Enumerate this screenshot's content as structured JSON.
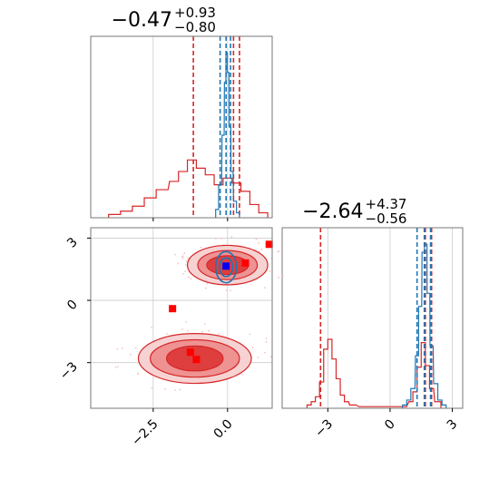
{
  "colors": {
    "red": "#d62728",
    "blue": "#1f77b4",
    "red_marker": "#ff0000",
    "blue_marker": "#0000ff",
    "grid": "#cccccc",
    "spine": "#777777"
  },
  "chart_data": [
    {
      "type": "histogram",
      "panel": "param-1-marginal",
      "title": "−0.47",
      "title_sup": "+0.93",
      "title_sub": "−0.80",
      "xlim": [
        -4.6,
        1.5
      ],
      "xticks": [
        -2.5,
        0.0
      ],
      "grid": true,
      "series": [
        {
          "color": "#d62728",
          "bins": [
            {
              "x": -3.8,
              "h": 0.02
            },
            {
              "x": -3.4,
              "h": 0.04
            },
            {
              "x": -3.0,
              "h": 0.07
            },
            {
              "x": -2.6,
              "h": 0.12
            },
            {
              "x": -2.2,
              "h": 0.17
            },
            {
              "x": -1.8,
              "h": 0.22
            },
            {
              "x": -1.5,
              "h": 0.28
            },
            {
              "x": -1.2,
              "h": 0.35
            },
            {
              "x": -0.9,
              "h": 0.3
            },
            {
              "x": -0.6,
              "h": 0.26
            },
            {
              "x": -0.3,
              "h": 0.2
            },
            {
              "x": 0.0,
              "h": 0.24
            },
            {
              "x": 0.3,
              "h": 0.21
            },
            {
              "x": 0.6,
              "h": 0.16
            },
            {
              "x": 0.9,
              "h": 0.08
            },
            {
              "x": 1.2,
              "h": 0.03
            }
          ],
          "quantile_lines": [
            -1.15,
            0.2,
            0.4
          ]
        },
        {
          "color": "#1f77b4",
          "bins": [
            {
              "x": -0.35,
              "h": 0.05
            },
            {
              "x": -0.25,
              "h": 0.2
            },
            {
              "x": -0.15,
              "h": 0.5
            },
            {
              "x": -0.08,
              "h": 0.82
            },
            {
              "x": -0.03,
              "h": 1.0
            },
            {
              "x": 0.02,
              "h": 0.88
            },
            {
              "x": 0.08,
              "h": 0.55
            },
            {
              "x": 0.15,
              "h": 0.28
            },
            {
              "x": 0.25,
              "h": 0.1
            },
            {
              "x": 0.35,
              "h": 0.03
            }
          ],
          "quantile_lines": [
            -0.25,
            -0.05,
            0.1
          ]
        }
      ]
    },
    {
      "type": "contour",
      "panel": "joint-2d",
      "xlim": [
        -4.6,
        1.5
      ],
      "ylim": [
        -5.2,
        3.5
      ],
      "xticks": [
        -2.5,
        0.0
      ],
      "yticks": [
        3,
        0,
        -3
      ],
      "grid": true,
      "red_modes": [
        {
          "cx": 0.0,
          "cy": 1.7,
          "rx": [
            1.35,
            1.0,
            0.7
          ],
          "ry": [
            0.95,
            0.7,
            0.45
          ]
        },
        {
          "cx": -1.1,
          "cy": -2.8,
          "rx": [
            1.9,
            1.5,
            0.95
          ],
          "ry": [
            1.2,
            0.9,
            0.6
          ]
        }
      ],
      "blue_mode": {
        "cx": -0.05,
        "cy": 1.6,
        "rx": [
          0.35,
          0.22
        ],
        "ry": [
          0.75,
          0.45
        ]
      },
      "red_markers": [
        {
          "x": 1.4,
          "y": 2.7
        },
        {
          "x": 0.6,
          "y": 1.8
        },
        {
          "x": -1.85,
          "y": -0.4
        },
        {
          "x": -1.25,
          "y": -2.5
        },
        {
          "x": -1.05,
          "y": -2.85
        }
      ],
      "blue_markers": [
        {
          "x": -0.05,
          "y": 1.65
        }
      ]
    },
    {
      "type": "histogram",
      "panel": "param-2-marginal",
      "title": "−2.64",
      "title_sup": "+4.37",
      "title_sub": "−0.56",
      "xlim": [
        -5.2,
        3.5
      ],
      "xticks": [
        -3,
        0,
        3
      ],
      "grid": true,
      "series": [
        {
          "color": "#d62728",
          "bins": [
            {
              "x": -3.9,
              "h": 0.02
            },
            {
              "x": -3.7,
              "h": 0.04
            },
            {
              "x": -3.5,
              "h": 0.07
            },
            {
              "x": -3.3,
              "h": 0.16
            },
            {
              "x": -3.1,
              "h": 0.36
            },
            {
              "x": -2.9,
              "h": 0.42
            },
            {
              "x": -2.7,
              "h": 0.3
            },
            {
              "x": -2.5,
              "h": 0.18
            },
            {
              "x": -2.3,
              "h": 0.08
            },
            {
              "x": -2.1,
              "h": 0.04
            },
            {
              "x": -1.8,
              "h": 0.02
            },
            {
              "x": -1.2,
              "h": 0.01
            },
            {
              "x": 0.6,
              "h": 0.01
            },
            {
              "x": 1.0,
              "h": 0.04
            },
            {
              "x": 1.2,
              "h": 0.1
            },
            {
              "x": 1.4,
              "h": 0.25
            },
            {
              "x": 1.6,
              "h": 0.4
            },
            {
              "x": 1.8,
              "h": 0.26
            },
            {
              "x": 2.0,
              "h": 0.12
            },
            {
              "x": 2.3,
              "h": 0.04
            }
          ],
          "quantile_lines": [
            -3.35,
            1.7,
            2.0
          ]
        },
        {
          "color": "#1f77b4",
          "bins": [
            {
              "x": 0.7,
              "h": 0.02
            },
            {
              "x": 0.9,
              "h": 0.05
            },
            {
              "x": 1.1,
              "h": 0.12
            },
            {
              "x": 1.3,
              "h": 0.32
            },
            {
              "x": 1.45,
              "h": 0.62
            },
            {
              "x": 1.6,
              "h": 0.95
            },
            {
              "x": 1.72,
              "h": 1.0
            },
            {
              "x": 1.85,
              "h": 0.7
            },
            {
              "x": 2.0,
              "h": 0.38
            },
            {
              "x": 2.2,
              "h": 0.15
            },
            {
              "x": 2.4,
              "h": 0.05
            },
            {
              "x": 2.6,
              "h": 0.02
            }
          ],
          "quantile_lines": [
            1.3,
            1.65,
            1.95
          ]
        }
      ]
    }
  ]
}
